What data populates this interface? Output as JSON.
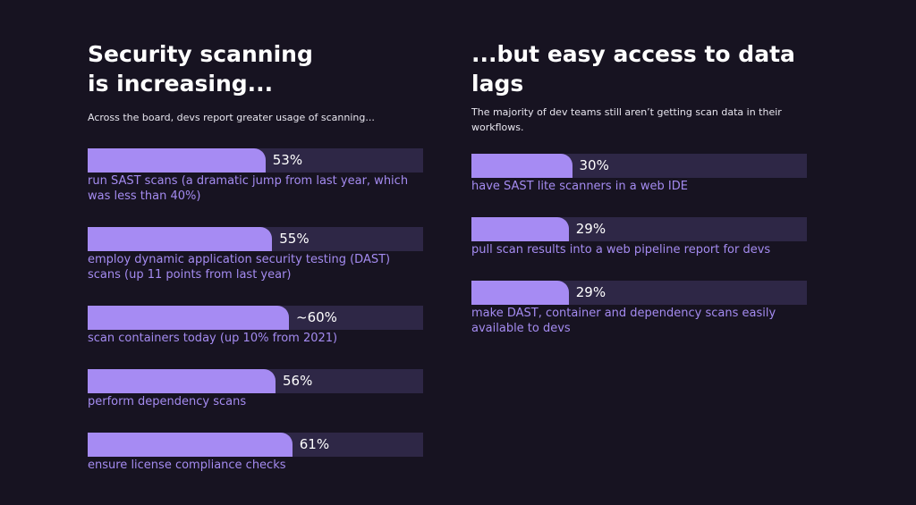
{
  "chart_data": [
    {
      "type": "bar",
      "orientation": "horizontal",
      "title": "Security scanning is increasing...",
      "subtitle": "Across the board, devs report greater usage of scanning...",
      "categories": [
        "run SAST scans (a dramatic jump from last year, which was less than 40%)",
        "employ dynamic application security testing (DAST) scans (up 11 points from last year)",
        "scan containers today (up 10% from 2021)",
        "perform dependency scans",
        "ensure license compliance checks"
      ],
      "values": [
        53,
        55,
        60,
        56,
        61
      ],
      "value_labels": [
        "53%",
        "55%",
        "~60%",
        "56%",
        "61%"
      ],
      "xlim": [
        0,
        100
      ],
      "color": "#a68bf3",
      "track_color": "#2e2746"
    },
    {
      "type": "bar",
      "orientation": "horizontal",
      "title": "...but easy access to data lags",
      "subtitle": "The majority of dev teams still aren’t getting scan data in their workflows.",
      "categories": [
        "have SAST lite scanners in a web IDE",
        "pull scan results into a web pipeline report for devs",
        "make DAST, container and dependency scans easily available to devs"
      ],
      "values": [
        30,
        29,
        29
      ],
      "value_labels": [
        "30%",
        "29%",
        "29%"
      ],
      "xlim": [
        0,
        100
      ],
      "color": "#a68bf3",
      "track_color": "#2e2746"
    }
  ]
}
